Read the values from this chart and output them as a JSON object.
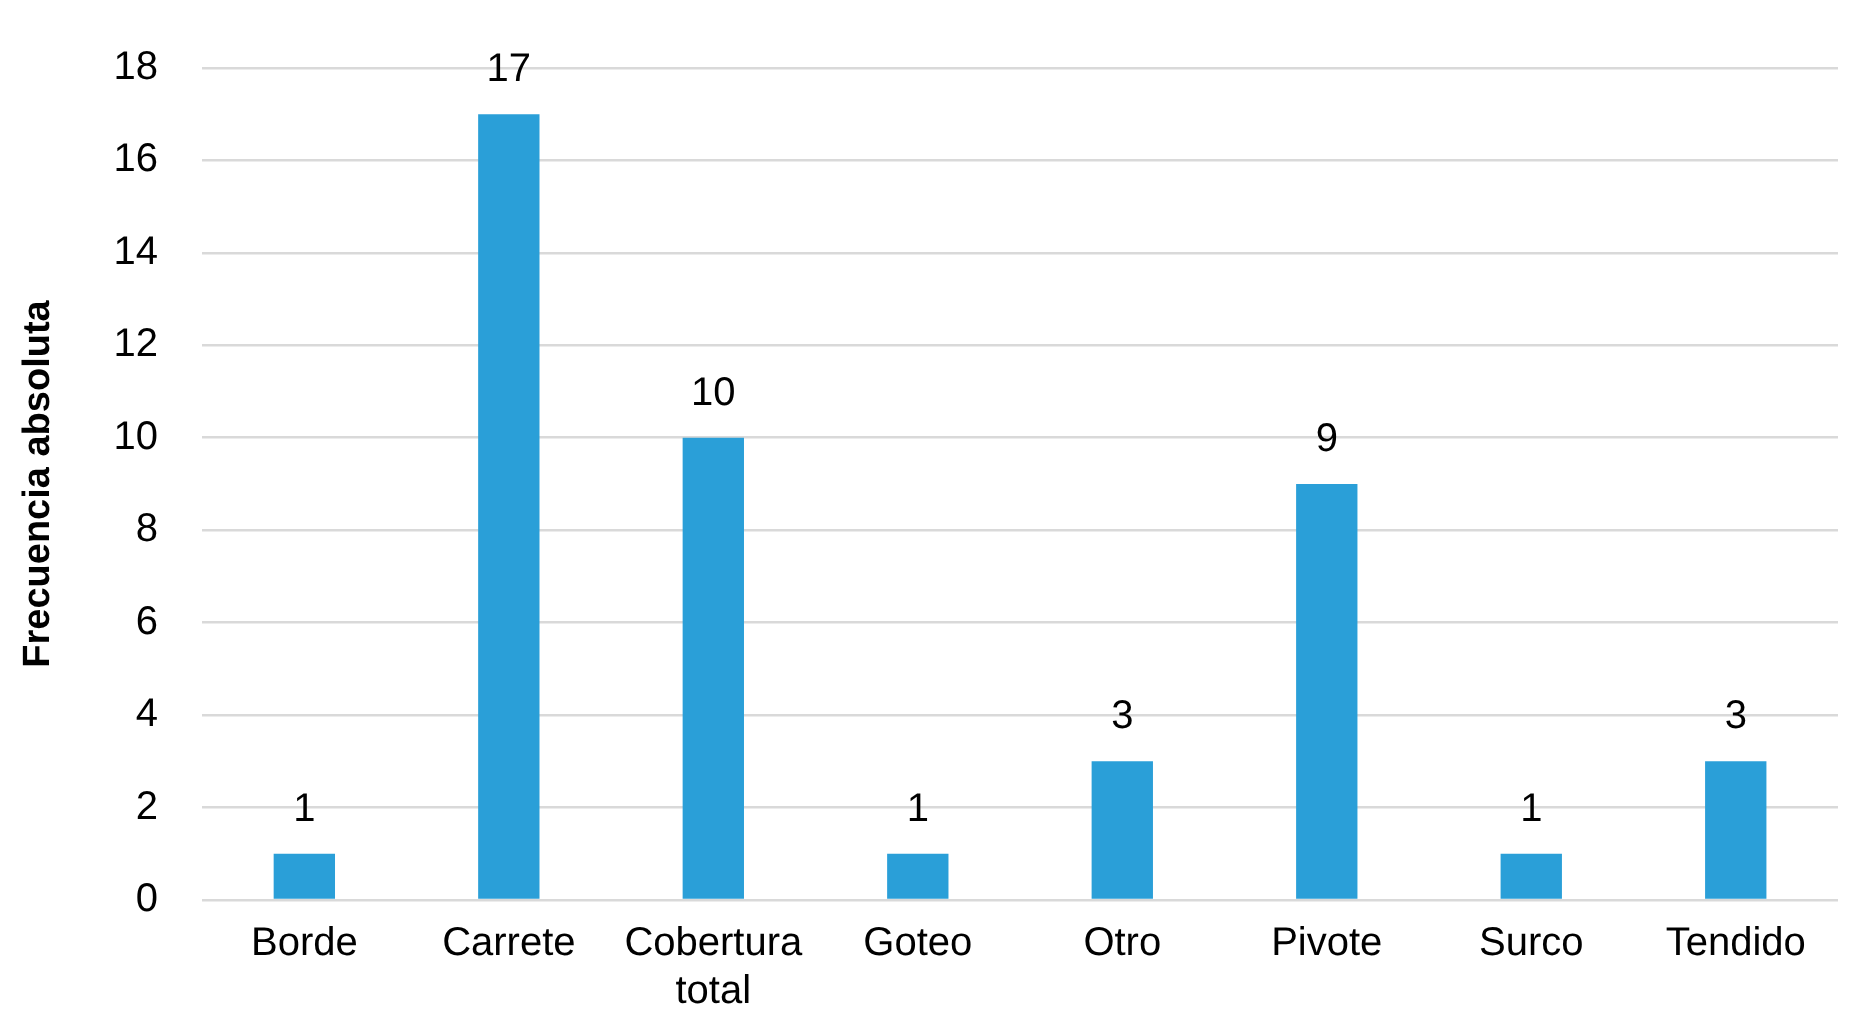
{
  "chart_data": {
    "type": "bar",
    "ylabel": "Frecuencia absoluta",
    "categories": [
      "Borde",
      "Carrete",
      "Cobertura total",
      "Goteo",
      "Otro",
      "Pivote",
      "Surco",
      "Tendido"
    ],
    "values": [
      1,
      17,
      10,
      1,
      3,
      9,
      1,
      3
    ],
    "color": "#2a9fd8",
    "ylim": [
      0,
      18
    ],
    "yticks": [
      0,
      2,
      4,
      6,
      8,
      10,
      12,
      14,
      16,
      18
    ],
    "grid": "y",
    "data_labels": true,
    "legend": false
  }
}
